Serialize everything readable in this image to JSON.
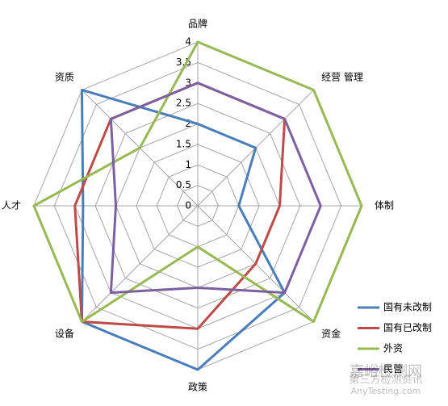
{
  "chart_data": {
    "type": "radar",
    "categories": [
      "品牌",
      "经营 管理",
      "体制",
      "资金",
      "政策",
      "设备",
      "人才",
      "资质"
    ],
    "series": [
      {
        "name": "国有未改制",
        "color": "#4a7ebb",
        "values": [
          2,
          2,
          1,
          3,
          4,
          4,
          2.8,
          4
        ]
      },
      {
        "name": "国有已改制",
        "color": "#be4b48",
        "values": [
          3,
          3,
          2,
          2,
          3,
          4,
          3,
          3
        ]
      },
      {
        "name": "外资",
        "color": "#98b954",
        "values": [
          4,
          4,
          4,
          4,
          1,
          4,
          4,
          2
        ]
      },
      {
        "name": "民营",
        "color": "#7d60a0",
        "values": [
          3,
          3,
          3,
          3,
          2,
          3,
          2,
          3
        ]
      }
    ],
    "rlim": [
      0,
      4
    ],
    "rticks": [
      0,
      0.5,
      1,
      1.5,
      2,
      2.5,
      3,
      3.5,
      4
    ],
    "grid": true,
    "legend": "right",
    "watermark": [
      "嘉峪检测网",
      "第三方检测资讯",
      "AnyTesting.com"
    ]
  }
}
